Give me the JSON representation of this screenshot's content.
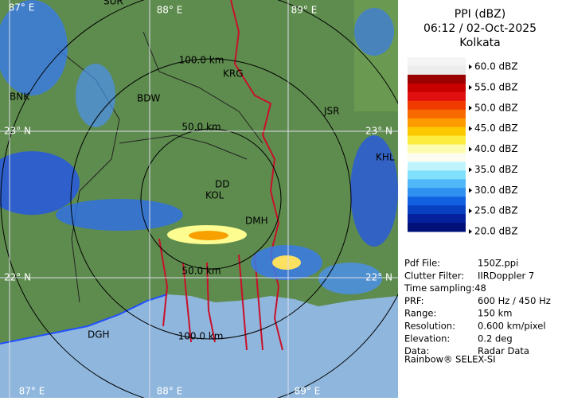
{
  "header": {
    "title": "PPI (dBZ)",
    "time": "06:12 / 02-Oct-2025",
    "site": "Kolkata"
  },
  "legend": {
    "colors": [
      "#f4f4f4",
      "#ececec",
      "#9a0000",
      "#c80000",
      "#e01010",
      "#f03a00",
      "#f86a00",
      "#fc9a00",
      "#fcc800",
      "#fcec40",
      "#fcfcb0",
      "#fcfcf0",
      "#c0f4fc",
      "#80e0fc",
      "#50b8f8",
      "#3090f0",
      "#1060e0",
      "#0840c0",
      "#04209c",
      "#001078"
    ],
    "labels": [
      "60.0 dBZ",
      "55.0 dBZ",
      "50.0 dBZ",
      "45.0 dBZ",
      "40.0 dBZ",
      "35.0 dBZ",
      "30.0 dBZ",
      "25.0 dBZ",
      "20.0 dBZ"
    ]
  },
  "info": [
    [
      "Pdf File:",
      "150Z.ppi"
    ],
    [
      "Clutter Filter:",
      "IIRDoppler 7"
    ],
    [
      "Time sampling:48",
      ""
    ],
    [
      "PRF:",
      "600 Hz / 450 Hz"
    ],
    [
      "Range:",
      "150 km"
    ],
    [
      "Resolution:",
      "0.600 km/pixel"
    ],
    [
      "Elevation:",
      "0.2 deg"
    ],
    [
      "Data:",
      "Radar Data"
    ]
  ],
  "footer": "Rainbow® SELEX-SI",
  "map": {
    "grid_labels": [
      "87° E",
      "88° E",
      "89° E",
      "23° N",
      "22° N",
      "87° E",
      "88° E",
      "89° E",
      "23° N",
      "22° N"
    ],
    "range_labels": [
      "100.0 km",
      "50.0 km",
      "50.0 km",
      "100.0 km"
    ],
    "places": [
      "SUR",
      "BNK",
      "BDW",
      "KRG",
      "JSR",
      "DD",
      "KOL",
      "DMH",
      "DGH",
      "KHL"
    ]
  }
}
